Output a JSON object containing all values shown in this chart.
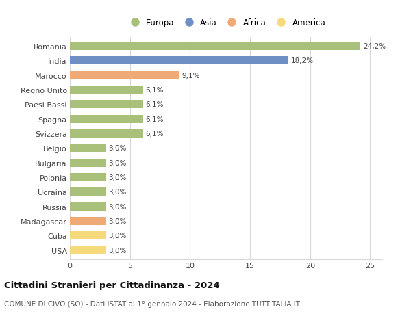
{
  "countries": [
    "USA",
    "Cuba",
    "Madagascar",
    "Russia",
    "Ucraina",
    "Polonia",
    "Bulgaria",
    "Belgio",
    "Svizzera",
    "Spagna",
    "Paesi Bassi",
    "Regno Unito",
    "Marocco",
    "India",
    "Romania"
  ],
  "values": [
    3.0,
    3.0,
    3.0,
    3.0,
    3.0,
    3.0,
    3.0,
    3.0,
    6.1,
    6.1,
    6.1,
    6.1,
    9.1,
    18.2,
    24.2
  ],
  "colors": [
    "#f5d97a",
    "#f5d97a",
    "#f0aa78",
    "#a8c07a",
    "#a8c07a",
    "#a8c07a",
    "#a8c07a",
    "#a8c07a",
    "#a8c07a",
    "#a8c07a",
    "#a8c07a",
    "#a8c07a",
    "#f0aa78",
    "#6e8fc4",
    "#a8c07a"
  ],
  "labels": [
    "3,0%",
    "3,0%",
    "3,0%",
    "3,0%",
    "3,0%",
    "3,0%",
    "3,0%",
    "3,0%",
    "6,1%",
    "6,1%",
    "6,1%",
    "6,1%",
    "9,1%",
    "18,2%",
    "24,2%"
  ],
  "legend": {
    "Europa": "#a8c07a",
    "Asia": "#6e8fc4",
    "Africa": "#f0aa78",
    "America": "#f5d97a"
  },
  "title": "Cittadini Stranieri per Cittadinanza - 2024",
  "subtitle": "COMUNE DI CIVO (SO) - Dati ISTAT al 1° gennaio 2024 - Elaborazione TUTTITALIA.IT",
  "xlim": [
    0,
    26
  ],
  "xticks": [
    0,
    5,
    10,
    15,
    20,
    25
  ],
  "background_color": "#ffffff",
  "grid_color": "#d8d8d8"
}
